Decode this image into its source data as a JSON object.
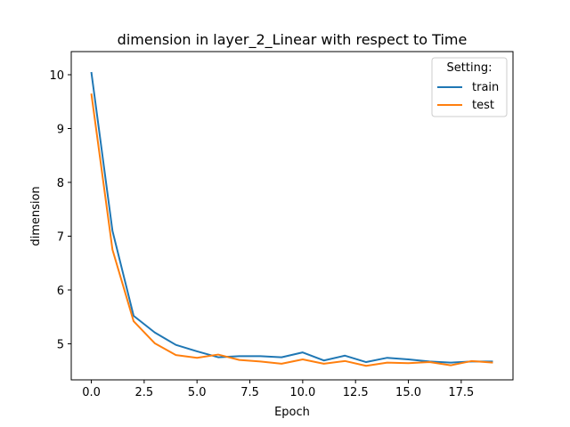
{
  "chart_data": {
    "type": "line",
    "title": "dimension in layer_2_Linear with respect to Time",
    "xlabel": "Epoch",
    "ylabel": "dimension",
    "xlim": [
      -0.95,
      19.95
    ],
    "ylim": [
      4.33,
      10.43
    ],
    "xticks": [
      0.0,
      2.5,
      5.0,
      7.5,
      10.0,
      12.5,
      15.0,
      17.5
    ],
    "xtick_labels": [
      "0.0",
      "2.5",
      "5.0",
      "7.5",
      "10.0",
      "12.5",
      "15.0",
      "17.5"
    ],
    "yticks": [
      5,
      6,
      7,
      8,
      9,
      10
    ],
    "ytick_labels": [
      "5",
      "6",
      "7",
      "8",
      "9",
      "10"
    ],
    "grid": false,
    "legend": {
      "title": "Setting:",
      "placement": "top-right"
    },
    "x": [
      0,
      1,
      2,
      3,
      4,
      5,
      6,
      7,
      8,
      9,
      10,
      11,
      12,
      13,
      14,
      15,
      16,
      17,
      18,
      19
    ],
    "series": [
      {
        "name": "train",
        "color": "#1f77b4",
        "values": [
          10.05,
          7.1,
          5.52,
          5.21,
          4.98,
          4.86,
          4.75,
          4.77,
          4.77,
          4.75,
          4.84,
          4.69,
          4.78,
          4.66,
          4.74,
          4.71,
          4.67,
          4.65,
          4.67,
          4.67
        ]
      },
      {
        "name": "test",
        "color": "#ff7f0e",
        "values": [
          9.65,
          6.75,
          5.42,
          5.01,
          4.79,
          4.74,
          4.8,
          4.7,
          4.67,
          4.63,
          4.71,
          4.63,
          4.68,
          4.59,
          4.65,
          4.64,
          4.66,
          4.6,
          4.68,
          4.65
        ]
      }
    ]
  }
}
